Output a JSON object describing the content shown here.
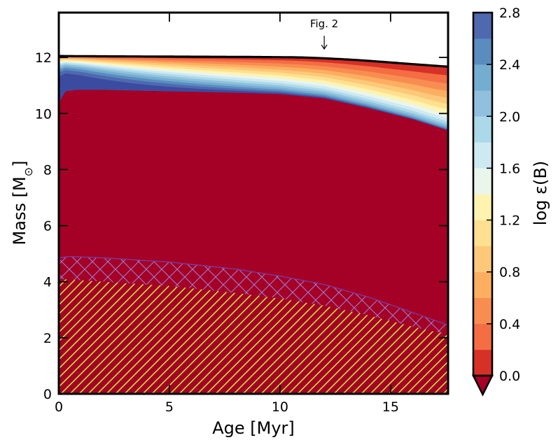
{
  "chart_data": {
    "type": "heatmap",
    "xlabel": "Age [Myr]",
    "ylabel_prefix": "Mass [M",
    "ylabel_symbol": "⊙",
    "ylabel_suffix": "]",
    "colorbar_label": "log ε(B)",
    "xlim": [
      0,
      17.6
    ],
    "ylim": [
      0,
      13.6
    ],
    "xticks": [
      "0",
      "5",
      "10",
      "15"
    ],
    "xtick_values": [
      0,
      5,
      10,
      15
    ],
    "yticks": [
      "0",
      "2",
      "4",
      "6",
      "8",
      "10",
      "12"
    ],
    "ytick_values": [
      0,
      2,
      4,
      6,
      8,
      10,
      12
    ],
    "colorbar_ticks": [
      "0.0",
      "0.4",
      "0.8",
      "1.2",
      "1.6",
      "2.0",
      "2.4",
      "2.8"
    ],
    "colorbar_tick_values": [
      0.0,
      0.4,
      0.8,
      1.2,
      1.6,
      2.0,
      2.4,
      2.8
    ],
    "colorbar_range": [
      0.0,
      2.8
    ],
    "colorbar_extend": "min",
    "levels": [
      0.0,
      0.2,
      0.4,
      0.6,
      0.8,
      1.0,
      1.2,
      1.4,
      1.6,
      1.8,
      2.0,
      2.2,
      2.4,
      2.6,
      2.8
    ],
    "level_colors": [
      "#d73027",
      "#f46d43",
      "#f88d52",
      "#fdae61",
      "#fdc879",
      "#fee090",
      "#fff3b0",
      "#eaf6ec",
      "#cfe9f2",
      "#abd9e9",
      "#90c0dd",
      "#74add1",
      "#5a8cc0",
      "#4f69b0",
      "#3b4ba0"
    ],
    "under_color": "#a50026",
    "stellar_mass_curve": {
      "x": [
        0,
        2,
        5,
        8,
        10,
        11,
        12,
        13,
        14,
        15,
        16,
        17.6
      ],
      "y": [
        12.05,
        12.04,
        12.03,
        12.02,
        12.01,
        12.0,
        11.97,
        11.93,
        11.88,
        11.82,
        11.76,
        11.67
      ]
    },
    "surface_zone_base": {
      "x": [
        0,
        0.3,
        0.8,
        2,
        5,
        8,
        10,
        12,
        14,
        16,
        17.6
      ],
      "y": [
        10.4,
        10.8,
        10.85,
        10.85,
        10.8,
        10.75,
        10.7,
        10.55,
        10.2,
        9.8,
        9.4
      ]
    },
    "crosshatch_zone_top": {
      "x": [
        0,
        0.5,
        2,
        5,
        8,
        10,
        12,
        14,
        16,
        17.6
      ],
      "y": [
        4.85,
        4.9,
        4.85,
        4.7,
        4.45,
        4.2,
        3.9,
        3.45,
        2.9,
        2.45
      ]
    },
    "core_hatch_top": {
      "x": [
        0,
        2,
        5,
        8,
        10,
        12,
        14,
        16,
        17.6
      ],
      "y": [
        4.1,
        4.0,
        3.85,
        3.6,
        3.4,
        3.15,
        2.8,
        2.4,
        2.1
      ]
    },
    "core_hatch_color": "#c8e632",
    "crosshatch_color": "#9e7cd0",
    "annotation": {
      "text": "Fig. 2",
      "x": 12.0,
      "arrow_tip_y": 12.3
    }
  }
}
